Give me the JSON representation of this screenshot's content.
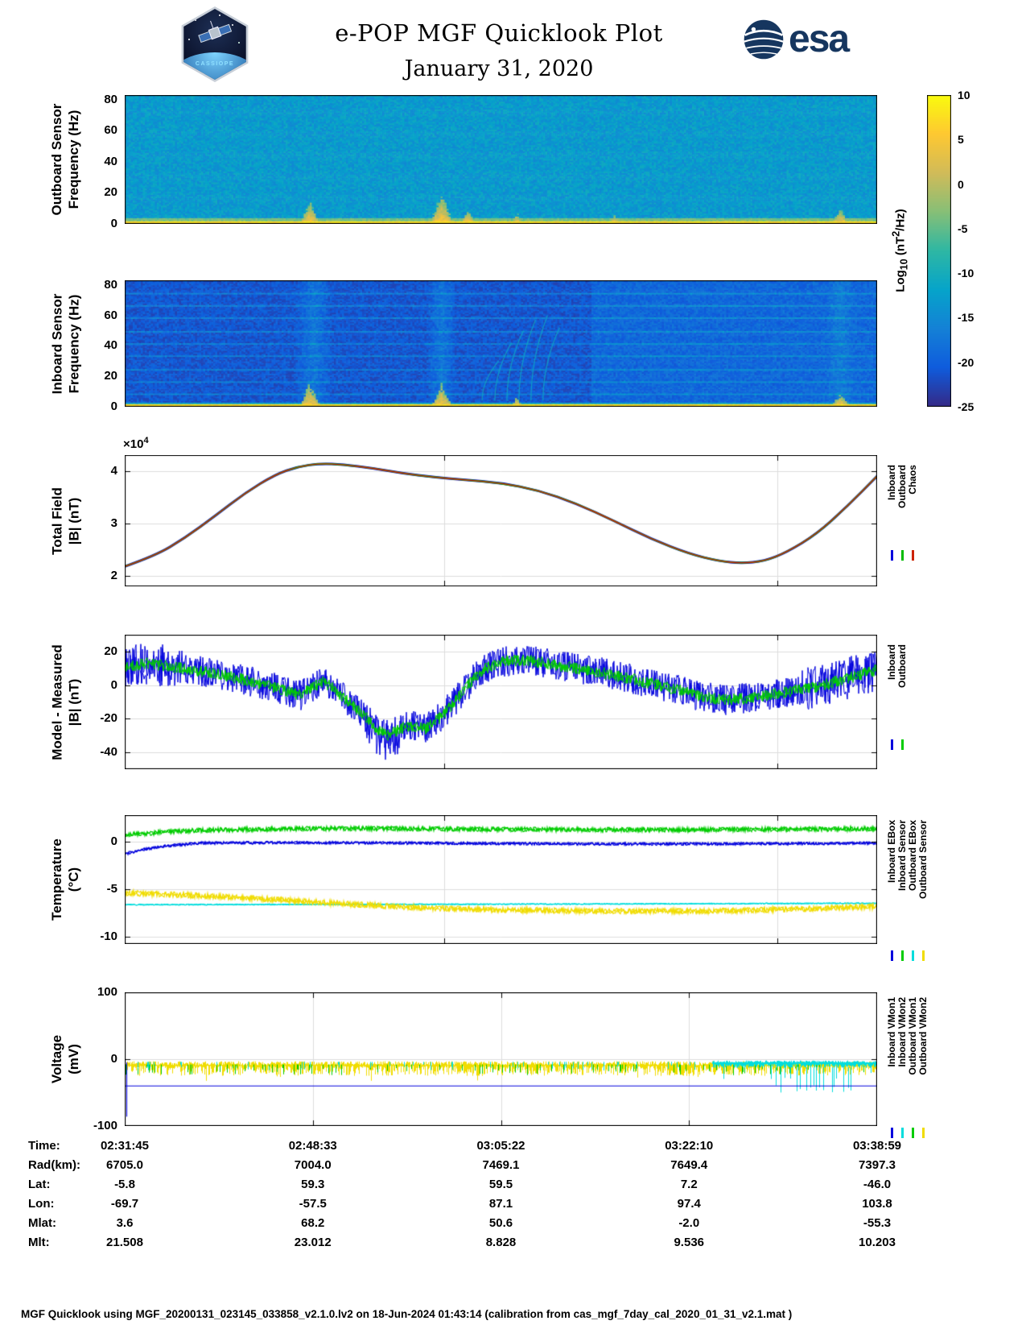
{
  "header": {
    "title": "e-POP MGF Quicklook Plot",
    "date": "January 31, 2020",
    "esa_wordmark": "esa",
    "cassiope_label": "CASSIOPE"
  },
  "colorbar": {
    "label_parts": {
      "prefix": "Log",
      "sub": "10",
      "mid": " (nT",
      "sup": "2",
      "suffix": "/Hz)"
    },
    "ticks": [
      10,
      5,
      0,
      -5,
      -10,
      -15,
      -20,
      -25
    ],
    "vmin": -25,
    "vmax": 10,
    "colormap": [
      "#352a87",
      "#0f5cdd",
      "#1481d6",
      "#06a4ca",
      "#2eb7a4",
      "#87bf77",
      "#d1bb59",
      "#fec832",
      "#f9fb0e"
    ]
  },
  "time_axis": {
    "labels": [
      "02:31:45",
      "02:48:33",
      "03:05:22",
      "03:22:10",
      "03:38:59"
    ],
    "positions": [
      0,
      0.25,
      0.5,
      0.75,
      1
    ]
  },
  "chart_data": [
    {
      "id": "outboard-spectrogram",
      "type": "heatmap",
      "ylabel_lines": [
        "Outboard Sensor",
        "Frequency (Hz)"
      ],
      "ylim": [
        0,
        83
      ],
      "yticks": [
        0,
        20,
        40,
        60,
        80
      ],
      "value_units": "Log10 (nT2/Hz)",
      "background_level": -13,
      "noise_amp": 5,
      "baseband": {
        "max_hz": 2.5,
        "level": 6
      },
      "transition": {
        "max_hz": 4.5,
        "level": -4
      },
      "events": [
        {
          "x": 0.245,
          "w": 0.012,
          "h": 14
        },
        {
          "x": 0.42,
          "w": 0.014,
          "h": 20
        },
        {
          "x": 0.455,
          "w": 0.008,
          "h": 8
        },
        {
          "x": 0.52,
          "w": 0.006,
          "h": 6
        },
        {
          "x": 0.65,
          "w": 0.006,
          "h": 5
        },
        {
          "x": 0.95,
          "w": 0.01,
          "h": 9
        }
      ]
    },
    {
      "id": "inboard-spectrogram",
      "type": "heatmap",
      "ylabel_lines": [
        "Inboard Sensor",
        "Frequency (Hz)"
      ],
      "ylim": [
        0,
        83
      ],
      "yticks": [
        0,
        20,
        40,
        60,
        80
      ],
      "value_units": "Log10 (nT2/Hz)",
      "background_level": -21,
      "noise_amp": 4,
      "right_half_boost": {
        "from_x": 0.62,
        "level": 1.8
      },
      "baseband": {
        "max_hz": 2,
        "level": 6
      },
      "transition": {
        "max_hz": 3.5,
        "level": -12
      },
      "harmonic_lines_hz": [
        8.3,
        16.6,
        24.9,
        33.2,
        41.5,
        49.8,
        58.1,
        66.4,
        74.7
      ],
      "harmonic_boost": 4.5,
      "bright_bands": [
        {
          "x": 0.25,
          "w": 0.025,
          "b": 3.5
        },
        {
          "x": 0.42,
          "w": 0.02,
          "b": 3.5
        },
        {
          "x": 0.95,
          "w": 0.02,
          "b": 2.5
        }
      ],
      "events": [
        {
          "x": 0.245,
          "w": 0.012,
          "h": 16
        },
        {
          "x": 0.42,
          "w": 0.012,
          "h": 14
        },
        {
          "x": 0.52,
          "w": 0.005,
          "h": 6
        },
        {
          "x": 0.95,
          "w": 0.01,
          "h": 8
        }
      ],
      "arcs": {
        "x_starts": [
          0.475,
          0.492,
          0.508,
          0.524,
          0.54,
          0.556
        ],
        "max_hz": [
          30,
          42,
          50,
          57,
          60,
          52
        ],
        "level": -11
      }
    },
    {
      "id": "total-field",
      "type": "line",
      "ylabel_lines": [
        "Total Field",
        "|B| (nT)"
      ],
      "scale_label": {
        "prefix": "×10",
        "exp": "4"
      },
      "ylim": [
        1.8,
        4.3
      ],
      "yticks": [
        2,
        3,
        4
      ],
      "grid_x": [
        0.425,
        0.867
      ],
      "units": "1e4 nT",
      "series": [
        {
          "name": "Inboard",
          "color": "#0000dd",
          "width": 3
        },
        {
          "name": "Outboard",
          "color": "#00bb00",
          "width": 2.1
        },
        {
          "name": "Chaos",
          "color": "#cc2200",
          "width": 1.4
        }
      ],
      "note": "Inboard, Outboard and Chaos model curves overlap almost exactly",
      "points": [
        [
          0,
          2.18
        ],
        [
          0.04,
          2.38
        ],
        [
          0.08,
          2.72
        ],
        [
          0.12,
          3.14
        ],
        [
          0.16,
          3.58
        ],
        [
          0.2,
          3.93
        ],
        [
          0.23,
          4.08
        ],
        [
          0.26,
          4.14
        ],
        [
          0.29,
          4.12
        ],
        [
          0.33,
          4.05
        ],
        [
          0.37,
          3.95
        ],
        [
          0.41,
          3.88
        ],
        [
          0.45,
          3.83
        ],
        [
          0.5,
          3.77
        ],
        [
          0.55,
          3.63
        ],
        [
          0.6,
          3.38
        ],
        [
          0.65,
          3.05
        ],
        [
          0.7,
          2.7
        ],
        [
          0.75,
          2.42
        ],
        [
          0.79,
          2.28
        ],
        [
          0.82,
          2.24
        ],
        [
          0.85,
          2.28
        ],
        [
          0.88,
          2.45
        ],
        [
          0.92,
          2.8
        ],
        [
          0.96,
          3.32
        ],
        [
          1,
          3.9
        ]
      ]
    },
    {
      "id": "model-minus-measured",
      "type": "line",
      "ylabel_lines": [
        "Model - Measured",
        "|B| (nT)"
      ],
      "ylim": [
        -50,
        30
      ],
      "yticks": [
        -40,
        -20,
        0,
        20
      ],
      "grid_x": [
        0.425,
        0.867
      ],
      "series": [
        {
          "name": "Inboard",
          "color": "#0000dd",
          "noise_amp": 9
        },
        {
          "name": "Outboard",
          "color": "#00cc00",
          "noise_amp": 3.5
        }
      ],
      "mean_points": [
        [
          0,
          11
        ],
        [
          0.03,
          13
        ],
        [
          0.06,
          11
        ],
        [
          0.09,
          9
        ],
        [
          0.12,
          7
        ],
        [
          0.15,
          4
        ],
        [
          0.18,
          1
        ],
        [
          0.21,
          -3
        ],
        [
          0.235,
          -6
        ],
        [
          0.25,
          -1
        ],
        [
          0.265,
          2
        ],
        [
          0.28,
          -3
        ],
        [
          0.3,
          -11
        ],
        [
          0.32,
          -19
        ],
        [
          0.335,
          -26
        ],
        [
          0.35,
          -30
        ],
        [
          0.365,
          -26
        ],
        [
          0.38,
          -24
        ],
        [
          0.4,
          -26
        ],
        [
          0.42,
          -19
        ],
        [
          0.44,
          -9
        ],
        [
          0.46,
          2
        ],
        [
          0.48,
          10
        ],
        [
          0.5,
          14
        ],
        [
          0.53,
          15
        ],
        [
          0.56,
          13
        ],
        [
          0.6,
          10
        ],
        [
          0.64,
          7
        ],
        [
          0.68,
          3
        ],
        [
          0.72,
          -1
        ],
        [
          0.76,
          -6
        ],
        [
          0.8,
          -9
        ],
        [
          0.84,
          -7
        ],
        [
          0.88,
          -4
        ],
        [
          0.92,
          -1
        ],
        [
          0.96,
          4
        ],
        [
          1,
          9
        ]
      ]
    },
    {
      "id": "temperature",
      "type": "line",
      "ylabel_lines": [
        "Temperature",
        "(°C)"
      ],
      "ylim": [
        -10.8,
        2.8
      ],
      "yticks": [
        -10,
        -5,
        0
      ],
      "grid_x": [
        0.425,
        0.867
      ],
      "series": [
        {
          "name": "Inboard EBox",
          "color": "#0000dd",
          "noise_amp": 0.15,
          "points": [
            [
              0,
              -1.3
            ],
            [
              0.02,
              -0.9
            ],
            [
              0.05,
              -0.5
            ],
            [
              0.1,
              -0.15
            ],
            [
              0.2,
              -0.1
            ],
            [
              0.4,
              -0.15
            ],
            [
              0.5,
              -0.2
            ],
            [
              0.7,
              -0.25
            ],
            [
              0.9,
              -0.2
            ],
            [
              1,
              -0.15
            ]
          ]
        },
        {
          "name": "Inboard Sensor",
          "color": "#00cc00",
          "noise_amp": 0.25,
          "points": [
            [
              0,
              0.7
            ],
            [
              0.05,
              1.0
            ],
            [
              0.1,
              1.2
            ],
            [
              0.2,
              1.35
            ],
            [
              0.3,
              1.4
            ],
            [
              0.5,
              1.3
            ],
            [
              0.7,
              1.25
            ],
            [
              0.85,
              1.3
            ],
            [
              1,
              1.35
            ]
          ]
        },
        {
          "name": "Outboard EBox",
          "color": "#00dddd",
          "noise_amp": 0.06,
          "points": [
            [
              0,
              -6.65
            ],
            [
              0.5,
              -6.6
            ],
            [
              1,
              -6.5
            ]
          ]
        },
        {
          "name": "Outboard Sensor",
          "color": "#f0dc00",
          "noise_amp": 0.3,
          "points": [
            [
              0,
              -5.4
            ],
            [
              0.1,
              -5.7
            ],
            [
              0.2,
              -6.1
            ],
            [
              0.3,
              -6.6
            ],
            [
              0.4,
              -7.0
            ],
            [
              0.5,
              -7.2
            ],
            [
              0.6,
              -7.3
            ],
            [
              0.7,
              -7.35
            ],
            [
              0.8,
              -7.3
            ],
            [
              0.9,
              -7.1
            ],
            [
              1,
              -6.85
            ]
          ]
        }
      ]
    },
    {
      "id": "voltage",
      "type": "line",
      "ylabel_lines": [
        "Voltage",
        "(mV)"
      ],
      "ylim": [
        -100,
        100
      ],
      "yticks": [
        -100,
        0,
        100
      ],
      "grid_x": [
        0.25,
        0.5,
        0.75
      ],
      "series": [
        {
          "name": "Inboard VMon1",
          "color": "#0000dd",
          "style": "flat_line",
          "level": -40
        },
        {
          "name": "Inboard VMon2",
          "color": "#00dddd",
          "style": "noise_band",
          "dense_from_x": 0.78,
          "band": [
            -2,
            -13
          ]
        },
        {
          "name": "Outboard VMon1",
          "color": "#00cc00",
          "style": "sparse_spikes",
          "band": [
            -8,
            -24
          ]
        },
        {
          "name": "Outboard VMon2",
          "color": "#f0dc00",
          "style": "noise_band",
          "band": [
            -3,
            -27
          ]
        }
      ],
      "startup_spike": {
        "x": 0.002,
        "y_from": -5,
        "y_to": -86
      }
    }
  ],
  "table": {
    "rows": [
      {
        "label": "Time:",
        "values": [
          "02:31:45",
          "02:48:33",
          "03:05:22",
          "03:22:10",
          "03:38:59"
        ]
      },
      {
        "label": "Rad(km):",
        "values": [
          "6705.0",
          "7004.0",
          "7469.1",
          "7649.4",
          "7397.3"
        ]
      },
      {
        "label": "Lat:",
        "values": [
          "-5.8",
          "59.3",
          "59.5",
          "7.2",
          "-46.0"
        ]
      },
      {
        "label": "Lon:",
        "values": [
          "-69.7",
          "-57.5",
          "87.1",
          "97.4",
          "103.8"
        ]
      },
      {
        "label": "Mlat:",
        "values": [
          "3.6",
          "68.2",
          "50.6",
          "-2.0",
          "-55.3"
        ]
      },
      {
        "label": "Mlt:",
        "values": [
          "21.508",
          "23.012",
          "8.828",
          "9.536",
          "10.203"
        ]
      }
    ]
  },
  "footer": {
    "text": "MGF Quicklook using MGF_20200131_023145_033858_v2.1.0.lv2 on 18-Jun-2024 01:43:14 (calibration from cas_mgf_7day_cal_2020_01_31_v2.1.mat )"
  }
}
